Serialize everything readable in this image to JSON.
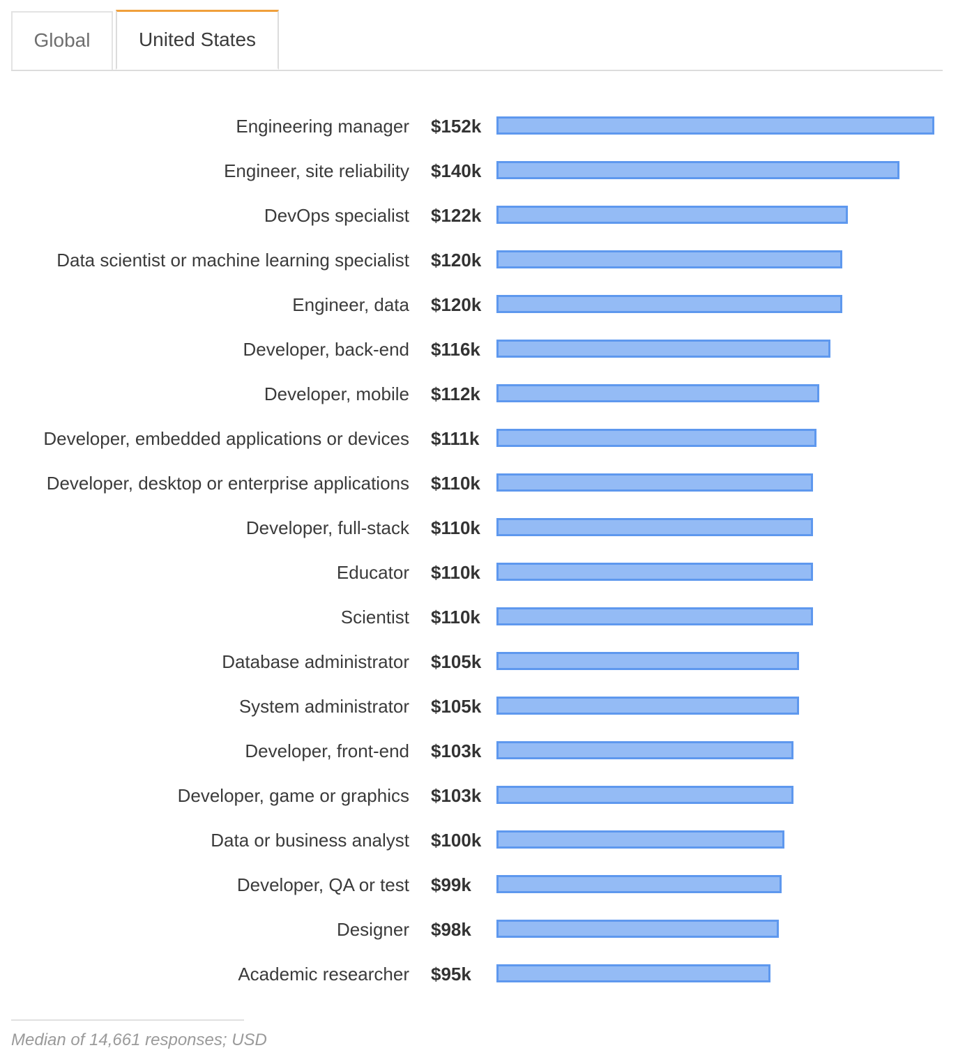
{
  "tabs": [
    {
      "label": "Global",
      "active": false
    },
    {
      "label": "United States",
      "active": true
    }
  ],
  "colors": {
    "bar_fill": "#94bbf5",
    "bar_border": "#5e98ee",
    "active_tab_accent": "#f0a03c"
  },
  "chart_data": {
    "type": "bar",
    "orientation": "horizontal",
    "categories": [
      "Engineering manager",
      "Engineer, site reliability",
      "DevOps specialist",
      "Data scientist or machine learning specialist",
      "Engineer, data",
      "Developer, back-end",
      "Developer, mobile",
      "Developer, embedded applications or devices",
      "Developer, desktop or enterprise applications",
      "Developer, full-stack",
      "Educator",
      "Scientist",
      "Database administrator",
      "System administrator",
      "Developer, front-end",
      "Developer, game or graphics",
      "Data or business analyst",
      "Developer, QA or test",
      "Designer",
      "Academic researcher"
    ],
    "values": [
      152,
      140,
      122,
      120,
      120,
      116,
      112,
      111,
      110,
      110,
      110,
      110,
      105,
      105,
      103,
      103,
      100,
      99,
      98,
      95
    ],
    "value_labels": [
      "$152k",
      "$140k",
      "$122k",
      "$120k",
      "$120k",
      "$116k",
      "$112k",
      "$111k",
      "$110k",
      "$110k",
      "$110k",
      "$110k",
      "$105k",
      "$105k",
      "$103k",
      "$103k",
      "$100k",
      "$99k",
      "$98k",
      "$95k"
    ],
    "xlim": [
      0,
      152
    ],
    "grid": false,
    "legend": "none"
  },
  "footnote": "Median of 14,661 responses; USD"
}
